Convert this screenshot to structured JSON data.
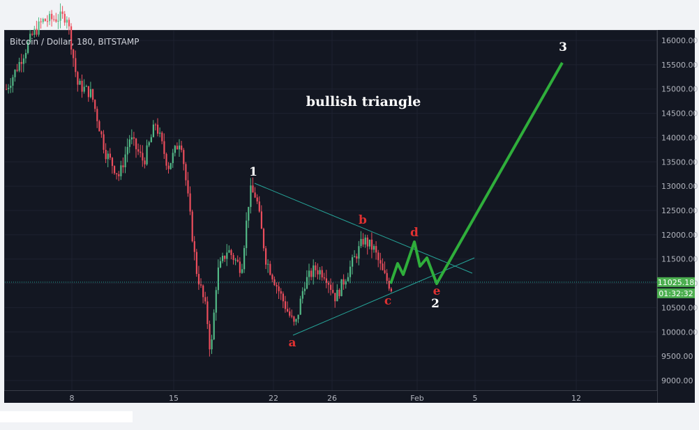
{
  "title": "Bitcoin / Dollar, 180, BITSTAMP",
  "annotation_title": "bullish triangle",
  "price_label": "11025.18",
  "countdown_label": "01:32:32",
  "colors": {
    "background": "#131722",
    "up_candle": "#53b987",
    "down_candle": "#eb4d5c",
    "trendline": "#26a69a",
    "projection": "#2fae3b",
    "wave_label_red": "#e03131",
    "wave_label_white": "#ffffff",
    "price_badge": "#4caf50"
  },
  "chart_data": {
    "type": "candlestick",
    "ylim": [
      8800,
      16200
    ],
    "y_ticks": [
      "16000.00",
      "15500.00",
      "15000.00",
      "14500.00",
      "14000.00",
      "13500.00",
      "13000.00",
      "12500.00",
      "12000.00",
      "11500.00",
      "11000.00",
      "10500.00",
      "10000.00",
      "9500.00",
      "9000.00"
    ],
    "x_ticks": [
      "8",
      "15",
      "22",
      "26",
      "Feb",
      "5",
      "12"
    ],
    "last_price": 11025.18,
    "wave_labels": [
      {
        "text": "1",
        "color": "white"
      },
      {
        "text": "a",
        "color": "red"
      },
      {
        "text": "b",
        "color": "red"
      },
      {
        "text": "c",
        "color": "red"
      },
      {
        "text": "d",
        "color": "red"
      },
      {
        "text": "e",
        "color": "red"
      },
      {
        "text": "2",
        "color": "white"
      },
      {
        "text": "3",
        "color": "white"
      }
    ]
  }
}
